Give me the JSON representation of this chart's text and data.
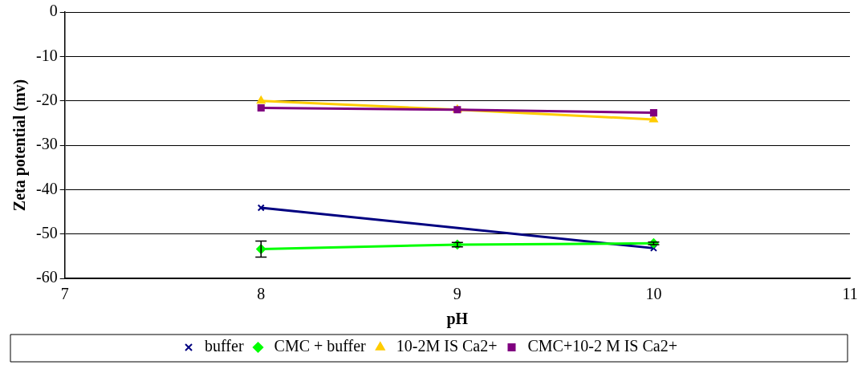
{
  "chart_data": {
    "type": "line",
    "xlabel": "pH",
    "ylabel": "Zeta potential (mv)",
    "xlim": [
      7,
      11
    ],
    "xticks": [
      7,
      8,
      9,
      10,
      11
    ],
    "ylim": [
      -60,
      0
    ],
    "yticks": [
      -60,
      -50,
      -40,
      -30,
      -20,
      -10,
      0
    ],
    "grid": "y",
    "line_style": "solid",
    "legend": "bottom",
    "series": [
      {
        "name": "buffer",
        "color": "#000080",
        "marker": "cross",
        "x": [
          8,
          10
        ],
        "values": [
          -44.1,
          -53.2
        ]
      },
      {
        "name": "CMC + buffer",
        "color": "#00ff00",
        "marker": "diamond",
        "x": [
          8,
          9,
          10
        ],
        "values": [
          -53.4,
          -52.4,
          -52.1
        ],
        "errors": [
          1.8,
          0.5,
          0.3
        ]
      },
      {
        "name": "10-2M IS Ca2+",
        "color": "#ffcc00",
        "marker": "triangle",
        "x": [
          8,
          9,
          10
        ],
        "values": [
          -20,
          -22,
          -24.2
        ]
      },
      {
        "name": "CMC+10-2 M IS Ca2+",
        "color": "#800080",
        "marker": "square",
        "x": [
          8,
          9,
          10
        ],
        "values": [
          -21.6,
          -22,
          -22.7
        ]
      }
    ]
  }
}
